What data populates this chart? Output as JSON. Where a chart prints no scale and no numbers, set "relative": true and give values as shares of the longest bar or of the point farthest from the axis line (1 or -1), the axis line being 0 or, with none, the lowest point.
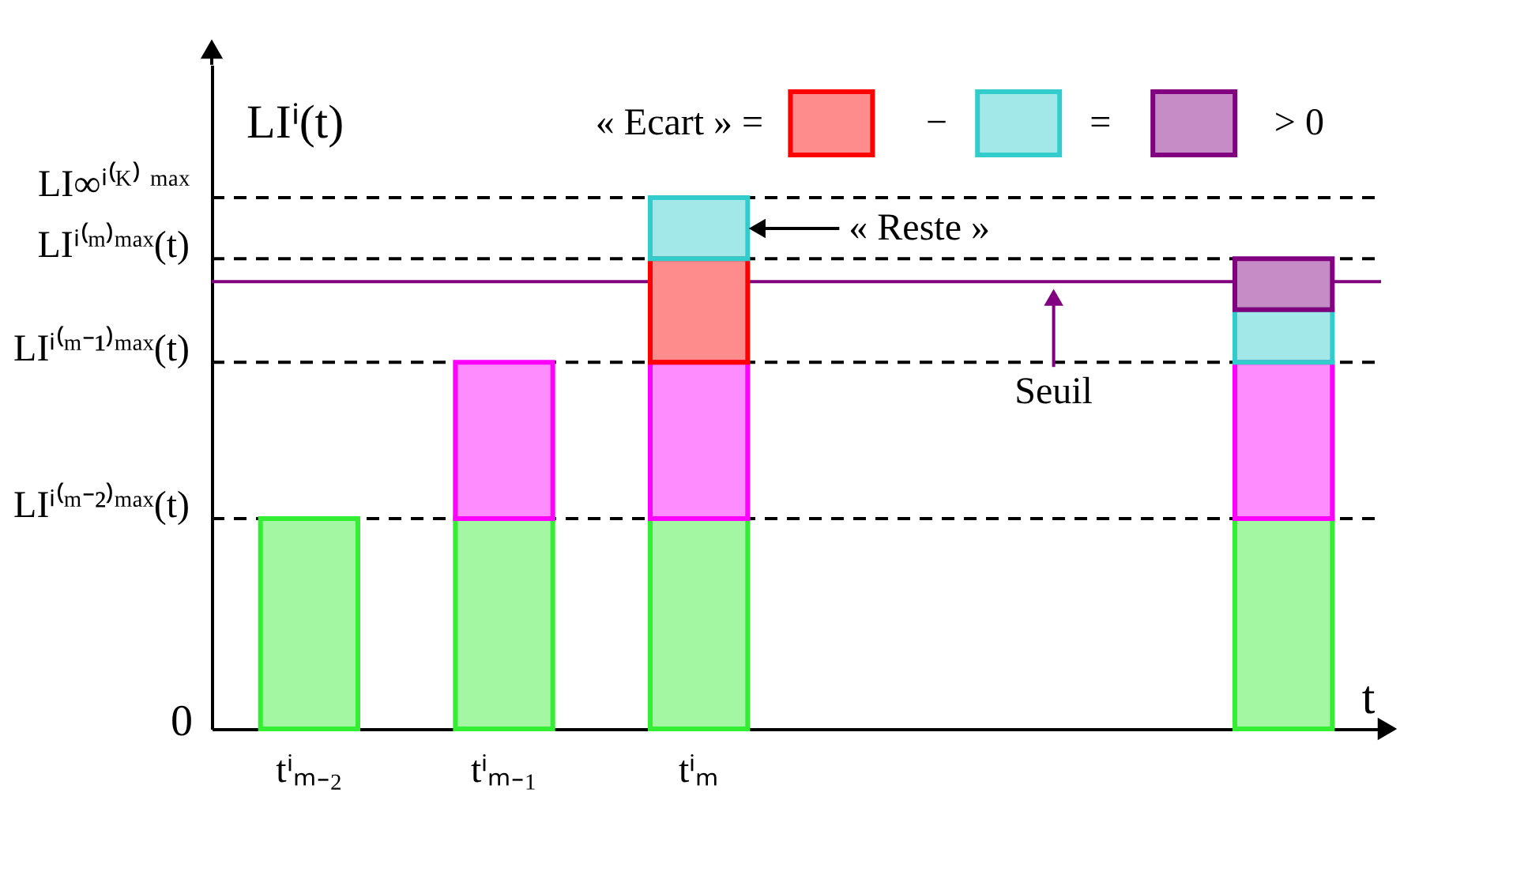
{
  "chart_data": {
    "type": "bar",
    "stacked": true,
    "relative": true,
    "grid": false,
    "ylabel": "LIⁱ(t)",
    "xlabel": "t",
    "categories": [
      "tⁱₘ₋₂",
      "tⁱₘ₋₁",
      "tⁱₘ",
      null,
      null,
      null
    ],
    "series": [
      {
        "color": "#33ee33",
        "values": [
          0.396,
          0.396,
          0.396,
          null,
          null,
          0.396
        ]
      },
      {
        "color": "#ff00ff",
        "values": [
          null,
          0.294,
          0.294,
          null,
          null,
          0.294
        ]
      },
      {
        "color": "#ff0000",
        "values": [
          null,
          null,
          0.195,
          null,
          null,
          null
        ]
      },
      {
        "color": "#33cccc",
        "values": [
          null,
          null,
          0.115,
          null,
          null,
          0.099
        ]
      },
      {
        "color": "#800080",
        "values": [
          null,
          null,
          null,
          null,
          null,
          0.096
        ]
      }
    ],
    "ref_lines": [
      {
        "axis": "y",
        "value": 0.396,
        "label": "LIⁱ⁽ᵐ⁻²⁾ᵐᵃˣ(t)",
        "line_style": "dashed",
        "color": "#000000"
      },
      {
        "axis": "y",
        "value": 0.69,
        "label": "LIⁱ⁽ᵐ⁻¹⁾ᵐᵃˣ(t)",
        "line_style": "dashed",
        "color": "#000000"
      },
      {
        "axis": "y",
        "value": 0.885,
        "label": "LIⁱ⁽ᵐ⁾ᵐᵃˣ(t)",
        "line_style": "dashed",
        "color": "#000000"
      },
      {
        "axis": "y",
        "value": 1.0,
        "label": "LI∞ⁱ⁽ᴷ⁾ ᵐᵃˣ",
        "line_style": "dashed",
        "color": "#000000"
      },
      {
        "axis": "y",
        "value": 0.842,
        "label": "Seuil",
        "line_style": "solid",
        "color": "#800080"
      }
    ],
    "annotations": [
      "0",
      "« Ecart » =",
      "−",
      "=",
      "> 0",
      "« Reste »"
    ]
  }
}
